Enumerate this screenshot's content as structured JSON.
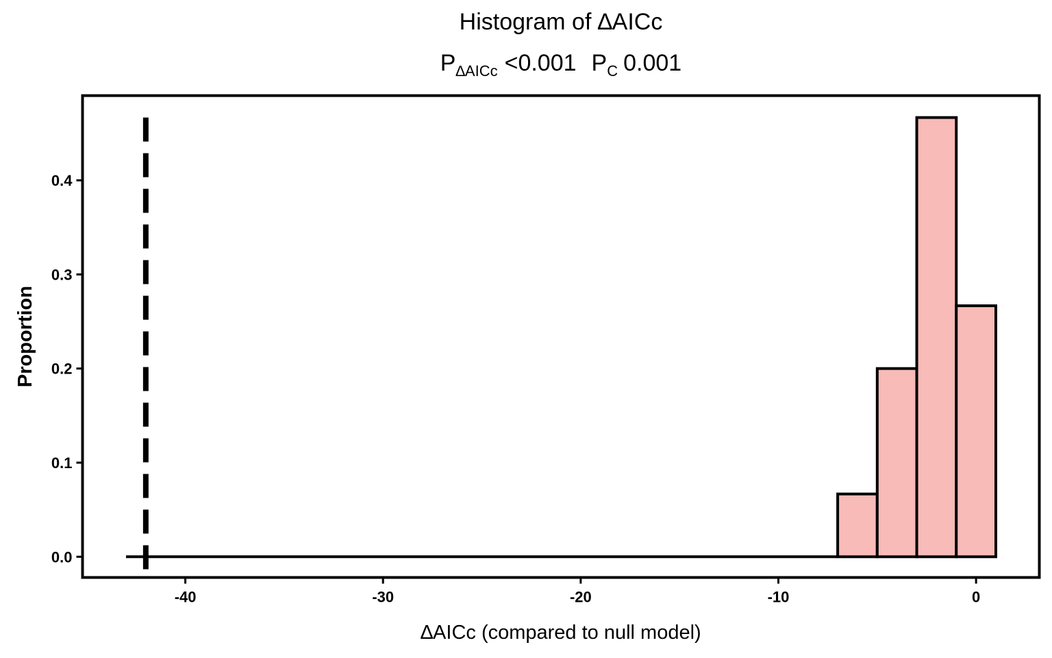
{
  "chart_data": {
    "type": "histogram",
    "title": "Histogram of ∆AICc",
    "subtitle": {
      "p1_label": "P",
      "p1_sub": "∆AICc",
      "p1_value": "<0.001",
      "p2_label": "P",
      "p2_sub": "C",
      "p2_value": "0.001"
    },
    "xlabel": "∆AICc (compared to null model)",
    "ylabel": "Proportion",
    "xlim": [
      -45.2,
      3.2
    ],
    "ylim": [
      -0.022,
      0.49
    ],
    "x_ticks": [
      -40,
      -30,
      -20,
      -10,
      0
    ],
    "x_tick_labels": [
      "-40",
      "-30",
      "-20",
      "-10",
      "0"
    ],
    "y_ticks": [
      0.0,
      0.1,
      0.2,
      0.3,
      0.4
    ],
    "y_tick_labels": [
      "0.0",
      "0.1",
      "0.2",
      "0.3",
      "0.4"
    ],
    "bins": [
      {
        "x0": -43.0,
        "x1": -7.0,
        "value": 0.0
      },
      {
        "x0": -7.0,
        "x1": -5.0,
        "value": 0.0667
      },
      {
        "x0": -5.0,
        "x1": -3.0,
        "value": 0.2
      },
      {
        "x0": -3.0,
        "x1": -1.0,
        "value": 0.4667
      },
      {
        "x0": -1.0,
        "x1": 1.0,
        "value": 0.2667
      }
    ],
    "bar_color": "#F8BBB7",
    "bar_edge_color": "#000000",
    "observed_line": {
      "x": -42.0,
      "style": "dashed"
    },
    "grid": false,
    "legend": "none"
  }
}
